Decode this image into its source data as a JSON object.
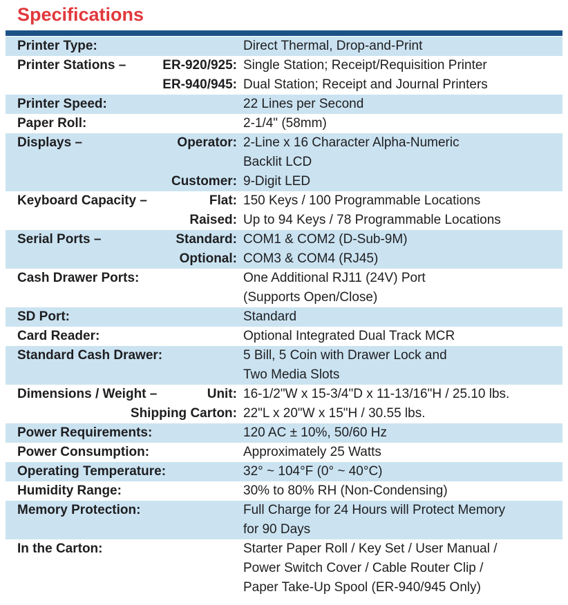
{
  "title": "Specifications",
  "colors": {
    "accent_red": "#e1383c",
    "divider_navy": "#1c5187",
    "row_shade_blue": "#cbe3f1",
    "text_ink": "#1e1e20"
  },
  "table": {
    "rows": [
      {
        "shaded": true,
        "entries": [
          {
            "label": "Printer Type:",
            "sub": "",
            "values": [
              "Direct Thermal, Drop-and-Print"
            ]
          }
        ]
      },
      {
        "shaded": false,
        "entries": [
          {
            "label": "Printer Stations –",
            "sub": "ER-920/925:",
            "values": [
              "Single Station; Receipt/Requisition Printer"
            ]
          },
          {
            "label": "",
            "sub": "ER-940/945:",
            "values": [
              "Dual Station; Receipt and Journal Printers"
            ]
          }
        ]
      },
      {
        "shaded": true,
        "entries": [
          {
            "label": "Printer Speed:",
            "sub": "",
            "values": [
              "22 Lines per Second"
            ]
          }
        ]
      },
      {
        "shaded": false,
        "entries": [
          {
            "label": "Paper Roll:",
            "sub": "",
            "values": [
              "2-1/4\" (58mm)"
            ]
          }
        ]
      },
      {
        "shaded": true,
        "entries": [
          {
            "label": "Displays –",
            "sub": "Operator:",
            "values": [
              "2-Line x 16 Character Alpha-Numeric",
              "Backlit LCD"
            ]
          },
          {
            "label": "",
            "sub": "Customer:",
            "values": [
              "9-Digit LED"
            ]
          }
        ]
      },
      {
        "shaded": false,
        "entries": [
          {
            "label": "Keyboard Capacity –",
            "sub": "Flat:",
            "values": [
              "150 Keys / 100 Programmable Locations"
            ]
          },
          {
            "label": "",
            "sub": "Raised:",
            "values": [
              "Up to 94 Keys / 78 Programmable Locations"
            ]
          }
        ]
      },
      {
        "shaded": true,
        "entries": [
          {
            "label": "Serial Ports –",
            "sub": "Standard:",
            "values": [
              "COM1 & COM2 (D-Sub-9M)"
            ]
          },
          {
            "label": "",
            "sub": "Optional:",
            "values": [
              "COM3 & COM4 (RJ45)"
            ]
          }
        ]
      },
      {
        "shaded": false,
        "entries": [
          {
            "label": "Cash Drawer Ports:",
            "sub": "",
            "values": [
              "One Additional RJ11 (24V) Port",
              "(Supports Open/Close)"
            ]
          }
        ]
      },
      {
        "shaded": true,
        "entries": [
          {
            "label": "SD Port:",
            "sub": "",
            "values": [
              "Standard"
            ]
          }
        ]
      },
      {
        "shaded": false,
        "entries": [
          {
            "label": "Card Reader:",
            "sub": "",
            "values": [
              "Optional Integrated Dual Track MCR"
            ]
          }
        ]
      },
      {
        "shaded": true,
        "entries": [
          {
            "label": "Standard Cash Drawer:",
            "sub": "",
            "values": [
              "5 Bill, 5 Coin with Drawer Lock and",
              "Two Media Slots"
            ]
          }
        ]
      },
      {
        "shaded": false,
        "entries": [
          {
            "label": "Dimensions / Weight –",
            "sub": "Unit:",
            "values": [
              "16-1/2\"W x 15-3/4\"D x 11-13/16\"H / 25.10 lbs."
            ]
          },
          {
            "label": "",
            "sub": "Shipping Carton:",
            "values": [
              "22\"L x 20\"W x 15\"H / 30.55 lbs."
            ]
          }
        ]
      },
      {
        "shaded": true,
        "entries": [
          {
            "label": "Power Requirements:",
            "sub": "",
            "values": [
              "120 AC ± 10%, 50/60 Hz"
            ]
          }
        ]
      },
      {
        "shaded": false,
        "entries": [
          {
            "label": "Power Consumption:",
            "sub": "",
            "values": [
              "Approximately 25 Watts"
            ]
          }
        ]
      },
      {
        "shaded": true,
        "entries": [
          {
            "label": "Operating Temperature:",
            "sub": "",
            "values": [
              "32° ~ 104°F (0° ~ 40°C)"
            ]
          }
        ]
      },
      {
        "shaded": false,
        "entries": [
          {
            "label": "Humidity Range:",
            "sub": "",
            "values": [
              "30% to 80% RH (Non-Condensing)"
            ]
          }
        ]
      },
      {
        "shaded": true,
        "entries": [
          {
            "label": "Memory Protection:",
            "sub": "",
            "values": [
              "Full Charge for 24 Hours will Protect Memory",
              "for 90 Days"
            ]
          }
        ]
      },
      {
        "shaded": false,
        "entries": [
          {
            "label": "In the Carton:",
            "sub": "",
            "values": [
              "Starter Paper Roll / Key Set / User Manual /",
              "Power Switch Cover / Cable Router Clip /",
              "Paper Take-Up Spool (ER-940/945 Only)"
            ]
          }
        ]
      }
    ]
  }
}
